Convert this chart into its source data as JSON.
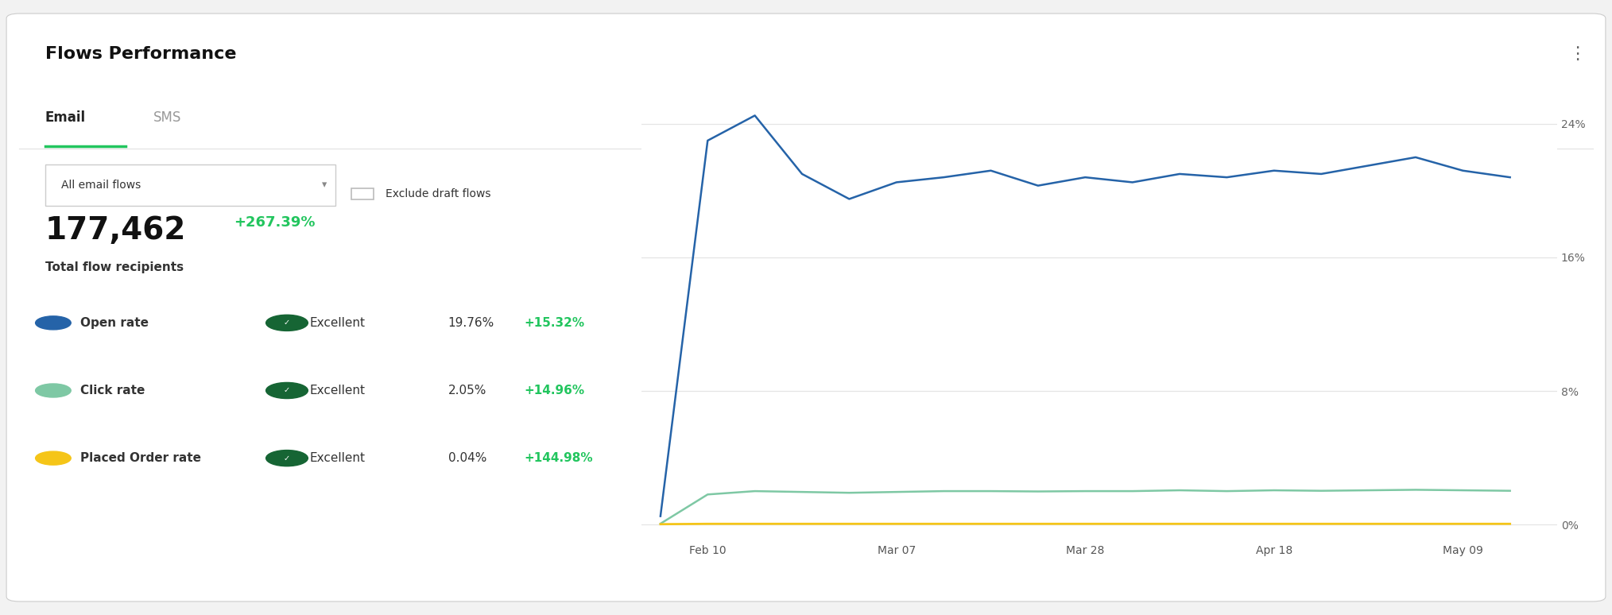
{
  "title": "Flows Performance",
  "tab_email": "Email",
  "tab_sms": "SMS",
  "dropdown_label": "All email flows",
  "checkbox_label": "Exclude draft flows",
  "big_number": "177,462",
  "big_number_change": "+267.39%",
  "big_number_label": "Total flow recipients",
  "metrics": [
    {
      "label": "Open rate",
      "dot_color": "#2563a8",
      "badge": "Excellent",
      "value": "19.76%",
      "change": "+15.32%"
    },
    {
      "label": "Click rate",
      "dot_color": "#7ec8a4",
      "badge": "Excellent",
      "value": "2.05%",
      "change": "+14.96%"
    },
    {
      "label": "Placed Order rate",
      "dot_color": "#f5c518",
      "badge": "Excellent",
      "value": "0.04%",
      "change": "+144.98%"
    }
  ],
  "x_labels": [
    "Feb 10",
    "Mar 07",
    "Mar 28",
    "Apr 18",
    "May 09"
  ],
  "open_rate_data": {
    "x": [
      0,
      0.5,
      1.0,
      1.5,
      2.0,
      2.5,
      3.0,
      3.5,
      4.0,
      4.5,
      5.0,
      5.5,
      6.0,
      6.5,
      7.0,
      7.5,
      8.0,
      8.5,
      9.0
    ],
    "y": [
      0.5,
      23.0,
      24.5,
      21.0,
      19.5,
      20.5,
      20.8,
      21.2,
      20.3,
      20.8,
      20.5,
      21.0,
      20.8,
      21.2,
      21.0,
      21.5,
      22.0,
      21.2,
      20.8
    ]
  },
  "click_rate_data": {
    "x": [
      0,
      0.5,
      1.0,
      1.5,
      2.0,
      2.5,
      3.0,
      3.5,
      4.0,
      4.5,
      5.0,
      5.5,
      6.0,
      6.5,
      7.0,
      7.5,
      8.0,
      8.5,
      9.0
    ],
    "y": [
      0.05,
      1.8,
      2.0,
      1.95,
      1.9,
      1.95,
      2.0,
      2.0,
      1.98,
      2.0,
      2.0,
      2.05,
      2.0,
      2.05,
      2.02,
      2.05,
      2.08,
      2.05,
      2.02
    ]
  },
  "placed_order_data": {
    "x": [
      0,
      0.5,
      1.0,
      9.0
    ],
    "y": [
      0.02,
      0.04,
      0.04,
      0.04
    ]
  },
  "y_ticks": [
    0,
    8,
    16,
    24
  ],
  "y_tick_labels": [
    "0%",
    "8%",
    "16%",
    "24%"
  ],
  "ylim": [
    -1.0,
    27
  ],
  "xlim": [
    -0.2,
    9.5
  ],
  "x_tick_positions": [
    0.5,
    2.5,
    4.5,
    6.5,
    8.5
  ],
  "background_color": "#f2f2f2",
  "card_bg": "#ffffff",
  "grid_color": "#e5e5e5",
  "tab_underline_color": "#22c55e",
  "green_text_color": "#22c55e",
  "dark_text_color": "#111111",
  "gray_text_color": "#999999",
  "open_rate_line_color": "#2563a8",
  "click_rate_line_color": "#7ec8a4",
  "placed_order_line_color": "#f5c518",
  "badge_green": "#166534",
  "badge_icon_color": "#166534"
}
